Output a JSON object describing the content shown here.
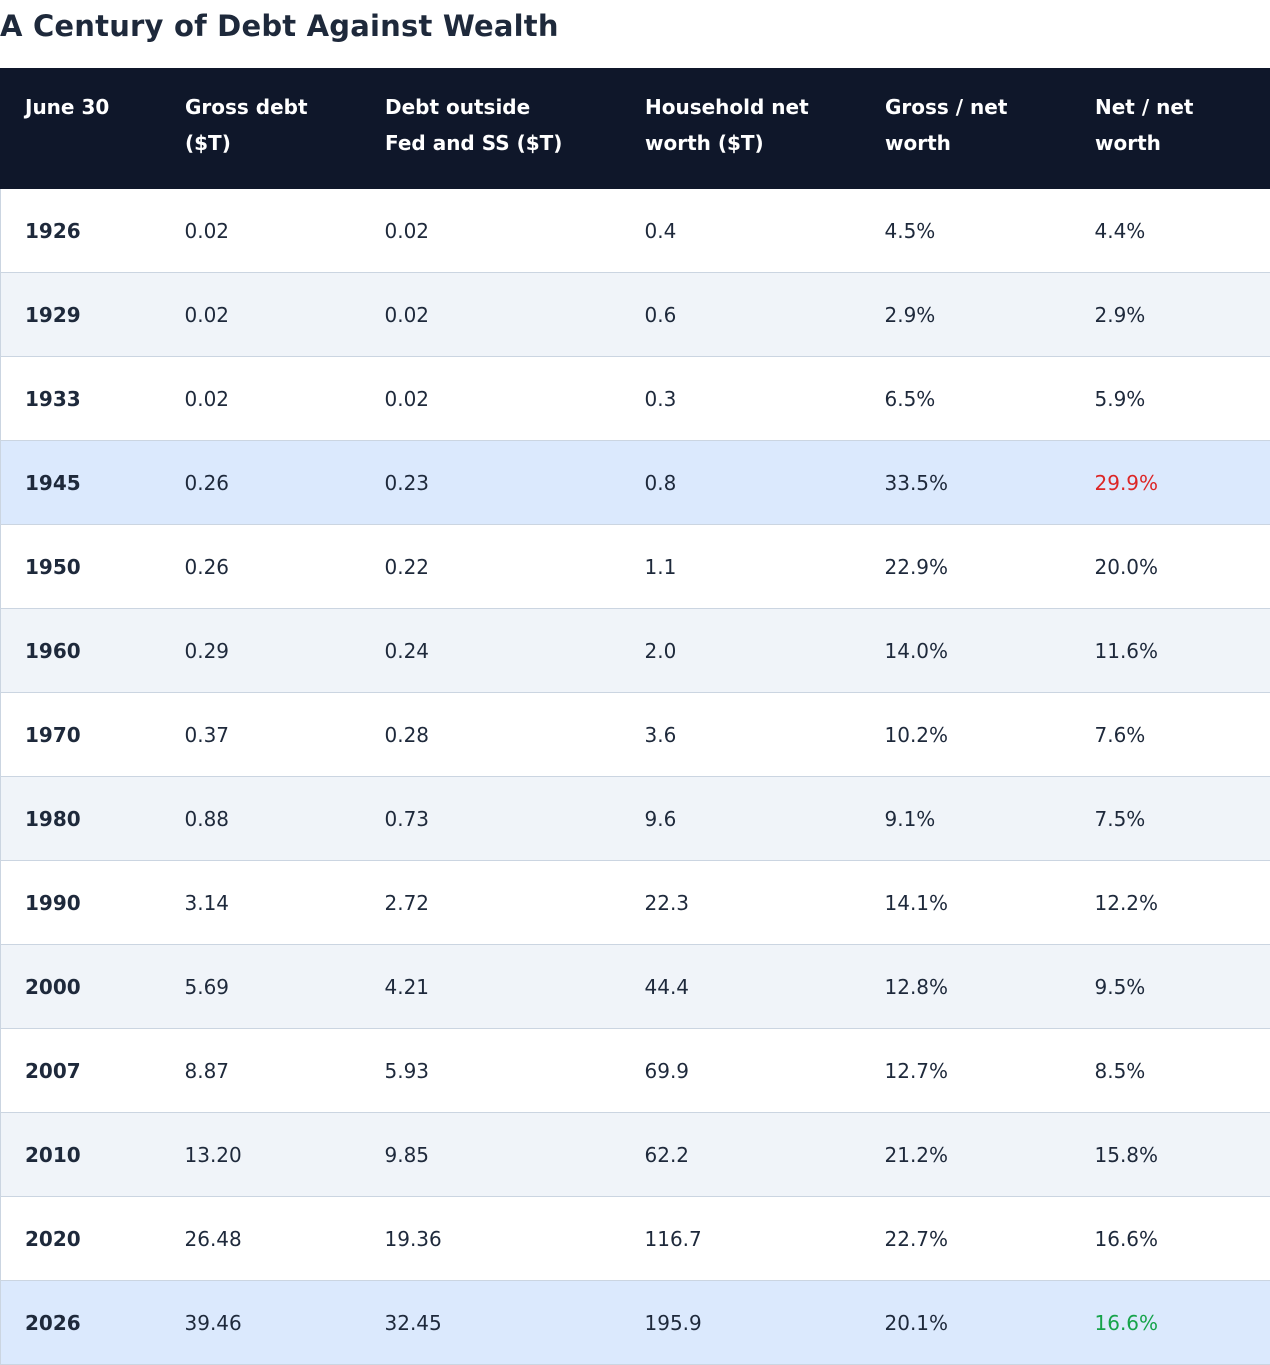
{
  "title": "A Century of Debt Against Wealth",
  "table": {
    "headers": [
      [
        "June 30",
        ""
      ],
      [
        "Gross debt",
        "($T)"
      ],
      [
        "Debt outside",
        "Fed and SS ($T)"
      ],
      [
        "Household net",
        "worth ($T)"
      ],
      [
        "Gross / net",
        "worth"
      ],
      [
        "Net / net",
        "worth"
      ]
    ],
    "rows": [
      {
        "year": "1926",
        "gross": "0.02",
        "outside": "0.02",
        "net_worth": "0.4",
        "gross_ratio": "4.5%",
        "net_ratio": "4.4%",
        "style": "white",
        "net_ratio_color": ""
      },
      {
        "year": "1929",
        "gross": "0.02",
        "outside": "0.02",
        "net_worth": "0.6",
        "gross_ratio": "2.9%",
        "net_ratio": "2.9%",
        "style": "gray",
        "net_ratio_color": ""
      },
      {
        "year": "1933",
        "gross": "0.02",
        "outside": "0.02",
        "net_worth": "0.3",
        "gross_ratio": "6.5%",
        "net_ratio": "5.9%",
        "style": "white",
        "net_ratio_color": ""
      },
      {
        "year": "1945",
        "gross": "0.26",
        "outside": "0.23",
        "net_worth": "0.8",
        "gross_ratio": "33.5%",
        "net_ratio": "29.9%",
        "style": "highlight",
        "net_ratio_color": "red"
      },
      {
        "year": "1950",
        "gross": "0.26",
        "outside": "0.22",
        "net_worth": "1.1",
        "gross_ratio": "22.9%",
        "net_ratio": "20.0%",
        "style": "white",
        "net_ratio_color": ""
      },
      {
        "year": "1960",
        "gross": "0.29",
        "outside": "0.24",
        "net_worth": "2.0",
        "gross_ratio": "14.0%",
        "net_ratio": "11.6%",
        "style": "gray",
        "net_ratio_color": ""
      },
      {
        "year": "1970",
        "gross": "0.37",
        "outside": "0.28",
        "net_worth": "3.6",
        "gross_ratio": "10.2%",
        "net_ratio": "7.6%",
        "style": "white",
        "net_ratio_color": ""
      },
      {
        "year": "1980",
        "gross": "0.88",
        "outside": "0.73",
        "net_worth": "9.6",
        "gross_ratio": "9.1%",
        "net_ratio": "7.5%",
        "style": "gray",
        "net_ratio_color": ""
      },
      {
        "year": "1990",
        "gross": "3.14",
        "outside": "2.72",
        "net_worth": "22.3",
        "gross_ratio": "14.1%",
        "net_ratio": "12.2%",
        "style": "white",
        "net_ratio_color": ""
      },
      {
        "year": "2000",
        "gross": "5.69",
        "outside": "4.21",
        "net_worth": "44.4",
        "gross_ratio": "12.8%",
        "net_ratio": "9.5%",
        "style": "gray",
        "net_ratio_color": ""
      },
      {
        "year": "2007",
        "gross": "8.87",
        "outside": "5.93",
        "net_worth": "69.9",
        "gross_ratio": "12.7%",
        "net_ratio": "8.5%",
        "style": "white",
        "net_ratio_color": ""
      },
      {
        "year": "2010",
        "gross": "13.20",
        "outside": "9.85",
        "net_worth": "62.2",
        "gross_ratio": "21.2%",
        "net_ratio": "15.8%",
        "style": "gray",
        "net_ratio_color": ""
      },
      {
        "year": "2020",
        "gross": "26.48",
        "outside": "19.36",
        "net_worth": "116.7",
        "gross_ratio": "22.7%",
        "net_ratio": "16.6%",
        "style": "white",
        "net_ratio_color": ""
      },
      {
        "year": "2026",
        "gross": "39.46",
        "outside": "32.45",
        "net_worth": "195.9",
        "gross_ratio": "20.1%",
        "net_ratio": "16.6%",
        "style": "highlight",
        "net_ratio_color": "green"
      }
    ]
  },
  "colors": {
    "header_bg": "#0f172a",
    "row_gray": "#f0f4f9",
    "row_highlight": "#dbe9fd",
    "red": "#dc2626",
    "green": "#16a34a"
  }
}
